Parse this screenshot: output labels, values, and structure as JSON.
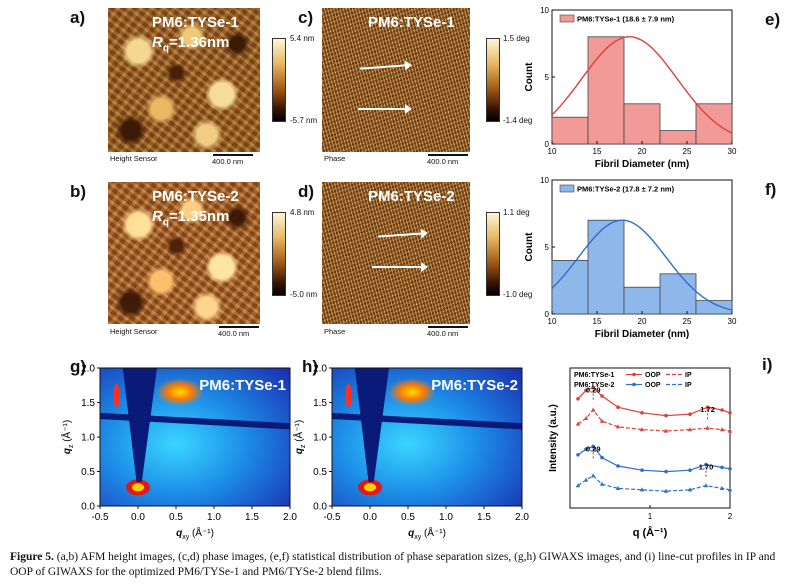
{
  "panels": {
    "a": {
      "letter": "a)",
      "title": "PM6:TYSe-1",
      "rq": "R",
      "rq_sub": "q",
      "rq_value": "=1.36nm",
      "sensor": "Height Sensor",
      "scale": "400.0 nm",
      "cbar_top": "5.4 nm",
      "cbar_bottom": "-5.7 nm"
    },
    "b": {
      "letter": "b)",
      "title": "PM6:TYSe-2",
      "rq": "R",
      "rq_sub": "q",
      "rq_value": "=1.35nm",
      "sensor": "Height Sensor",
      "scale": "400.0 nm",
      "cbar_top": "4.8 nm",
      "cbar_bottom": "-5.0 nm"
    },
    "c": {
      "letter": "c)",
      "title": "PM6:TYSe-1",
      "sensor": "Phase",
      "scale": "400.0 nm",
      "cbar_top": "1.5 deg",
      "cbar_bottom": "-1.4 deg"
    },
    "d": {
      "letter": "d)",
      "title": "PM6:TYSe-2",
      "sensor": "Phase",
      "scale": "400.0 nm",
      "cbar_top": "1.1 deg",
      "cbar_bottom": "-1.0 deg"
    },
    "g": {
      "letter": "g)",
      "title": "PM6:TYSe-1"
    },
    "h": {
      "letter": "h)",
      "title": "PM6:TYSe-2"
    },
    "e_letter": "e)",
    "f_letter": "f)",
    "i_letter": "i)"
  },
  "giwaxs_axes": {
    "ylabel": "q",
    "ylabel_sub": "z",
    "ylabel_unit": " (Å⁻¹)",
    "xlabel": "q",
    "xlabel_sub": "xy",
    "xlabel_unit": " (Å⁻¹)",
    "yticks": [
      "2.0",
      "1.5",
      "1.0",
      "0.5",
      "0.0"
    ],
    "xticks": [
      "-0.5",
      "0.0",
      "0.5",
      "1.0",
      "1.5",
      "2.0"
    ]
  },
  "chart_data": [
    {
      "id": "e",
      "type": "bar",
      "title": "",
      "legend": "PM6:TYSe-1 (18.6 ± 7.9 nm)",
      "xlabel": "Fibril Diameter (nm)",
      "ylabel": "Count",
      "bin_edges": [
        10,
        14,
        18,
        22,
        26,
        30
      ],
      "values": [
        2,
        8,
        3,
        1,
        3
      ],
      "xlim": [
        10,
        30
      ],
      "ylim": [
        0,
        10
      ],
      "xticks": [
        "10",
        "15",
        "20",
        "25",
        "30"
      ],
      "yticks": [
        "0",
        "5",
        "10"
      ],
      "fit_mean": 18.6,
      "fit_sd": 7.9,
      "fit_peak": 8,
      "color": "#f29a98",
      "line_color": "#e0403a"
    },
    {
      "id": "f",
      "type": "bar",
      "title": "",
      "legend": "PM6:TYSe-2 (17.8 ± 7.2 nm)",
      "xlabel": "Fibril Diameter (nm)",
      "ylabel": "Count",
      "bin_edges": [
        10,
        14,
        18,
        22,
        26,
        30
      ],
      "values": [
        4,
        7,
        2,
        3,
        1
      ],
      "xlim": [
        10,
        30
      ],
      "ylim": [
        0,
        10
      ],
      "xticks": [
        "10",
        "15",
        "20",
        "25",
        "30"
      ],
      "yticks": [
        "0",
        "5",
        "10"
      ],
      "fit_mean": 17.8,
      "fit_sd": 7.2,
      "fit_peak": 7,
      "color": "#8fb8ea",
      "line_color": "#2f6fc9"
    },
    {
      "id": "i",
      "type": "line",
      "xlabel": "q (Å⁻¹)",
      "ylabel": "Intensity (a.u.)",
      "xticks": [
        "1",
        "2"
      ],
      "legend": [
        {
          "name": "PM6:TYSe-1",
          "oop": "OOP",
          "ip": "IP",
          "color": "#e0403a"
        },
        {
          "name": "PM6:TYSe-2",
          "oop": "OOP",
          "ip": "IP",
          "color": "#2f6fc9"
        }
      ],
      "annotations": {
        "a1": "0.29",
        "a2": "1.72",
        "a3": "0.29",
        "a4": "1.70"
      },
      "series": [
        {
          "name": "PM6:TYSe-1 OOP",
          "x": [
            0.1,
            0.2,
            0.29,
            0.4,
            0.6,
            0.9,
            1.2,
            1.5,
            1.72,
            1.9,
            2.0
          ],
          "y": [
            0.78,
            0.84,
            0.86,
            0.8,
            0.72,
            0.68,
            0.66,
            0.67,
            0.72,
            0.7,
            0.68
          ]
        },
        {
          "name": "PM6:TYSe-1 IP",
          "x": [
            0.1,
            0.2,
            0.29,
            0.4,
            0.6,
            0.9,
            1.2,
            1.5,
            1.72,
            1.9,
            2.0
          ],
          "y": [
            0.6,
            0.64,
            0.7,
            0.62,
            0.58,
            0.56,
            0.55,
            0.56,
            0.57,
            0.56,
            0.55
          ]
        },
        {
          "name": "PM6:TYSe-2 OOP",
          "x": [
            0.1,
            0.2,
            0.29,
            0.4,
            0.6,
            0.9,
            1.2,
            1.5,
            1.7,
            1.9,
            2.0
          ],
          "y": [
            0.38,
            0.42,
            0.44,
            0.36,
            0.3,
            0.27,
            0.26,
            0.27,
            0.31,
            0.29,
            0.28
          ]
        },
        {
          "name": "PM6:TYSe-2 IP",
          "x": [
            0.1,
            0.2,
            0.29,
            0.4,
            0.6,
            0.9,
            1.2,
            1.5,
            1.7,
            1.9,
            2.0
          ],
          "y": [
            0.16,
            0.2,
            0.23,
            0.17,
            0.14,
            0.13,
            0.12,
            0.13,
            0.16,
            0.14,
            0.13
          ]
        }
      ]
    }
  ],
  "caption": {
    "label": "Figure 5.",
    "text": " (a,b) AFM height images, (c,d) phase images, (e,f) statistical distribution of phase separation sizes, (g,h) GIWAXS images, and (i) line-cut profiles in IP and OOP of GIWAXS for the optimized PM6/TYSe-1 and PM6/TYSe-2 blend films."
  }
}
